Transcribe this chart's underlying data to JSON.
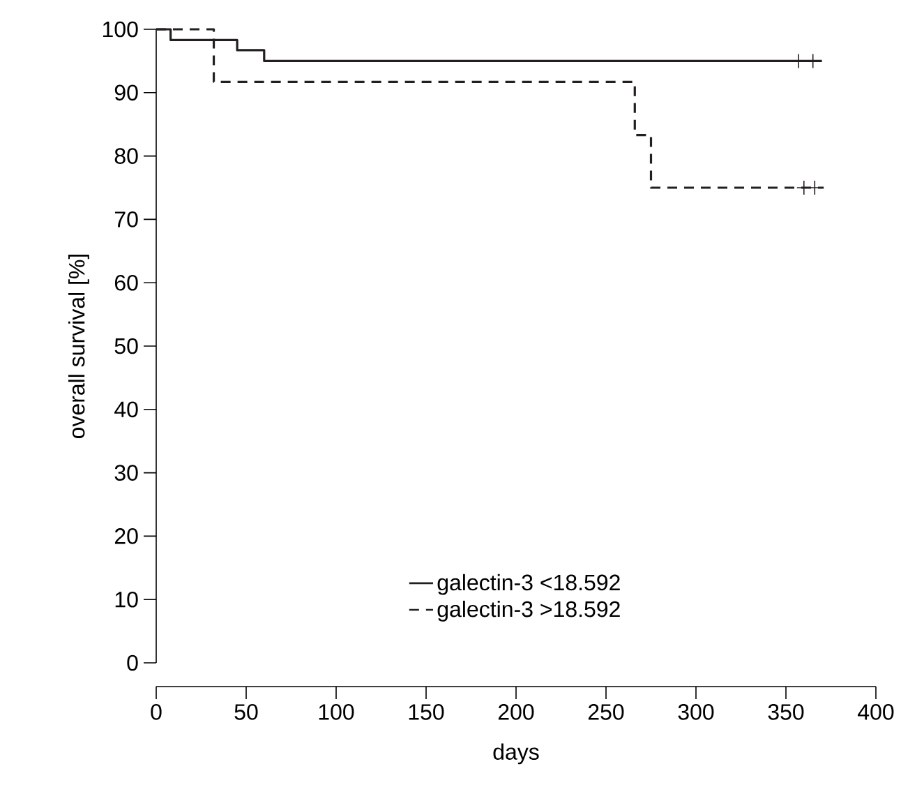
{
  "chart_data": {
    "type": "step",
    "xlabel": "days",
    "ylabel": "overall survival [%]",
    "xlim": [
      0,
      400
    ],
    "xticks": [
      0,
      50,
      100,
      150,
      200,
      250,
      300,
      350,
      400
    ],
    "ylim": [
      0,
      100
    ],
    "yticks": [
      0,
      10,
      20,
      30,
      40,
      50,
      60,
      70,
      80,
      90,
      100
    ],
    "legend": "bottom",
    "grid": false,
    "series": [
      {
        "name": "galectin-3 <18.592",
        "color": "#231f20",
        "line_style": "solid",
        "x": [
          0,
          8,
          45,
          60,
          370
        ],
        "values": [
          100,
          98.3,
          96.7,
          95,
          95
        ]
      },
      {
        "name": "galectin-3 >18.592",
        "color": "#231f20",
        "line_style": "dashed",
        "x": [
          0,
          32,
          266,
          275,
          371
        ],
        "values": [
          100,
          91.7,
          83.3,
          75,
          75
        ]
      },
      {
        "type": "scatter",
        "marker": "cross",
        "color": "#231f20",
        "x": [
          357,
          365
        ],
        "values": [
          95,
          95
        ]
      },
      {
        "type": "scatter",
        "marker": "cross",
        "color": "#231f20",
        "x": [
          360,
          366
        ],
        "values": [
          75,
          75
        ]
      }
    ]
  }
}
